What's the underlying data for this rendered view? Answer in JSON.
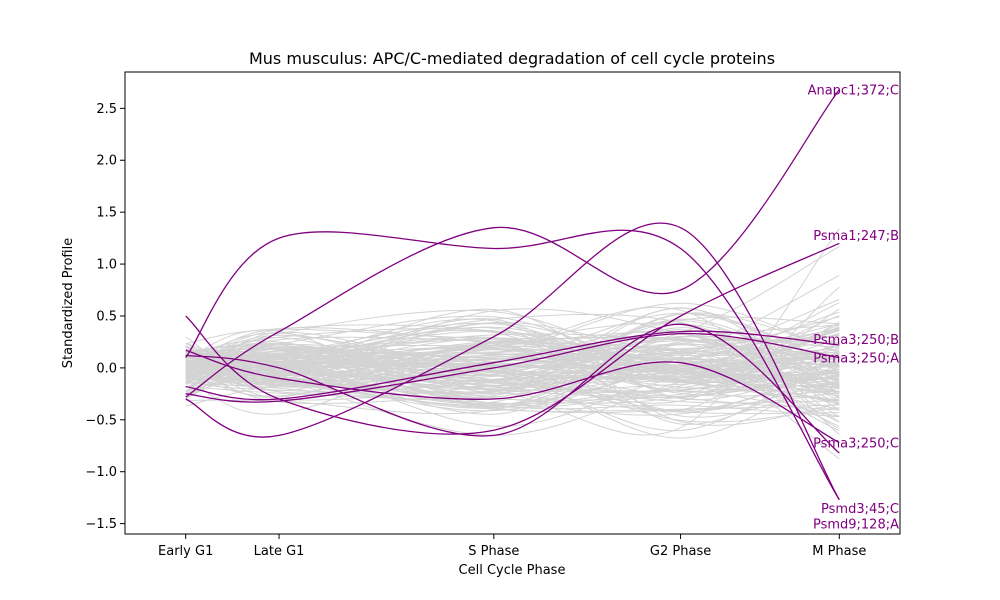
{
  "chart_data": {
    "type": "line",
    "title": "Mus musculus: APC/C-mediated degradation of cell cycle proteins",
    "xlabel": "Cell Cycle Phase",
    "ylabel": "Standardized Profile",
    "categories": [
      "Early G1",
      "Late G1",
      "S Phase",
      "G2 Phase",
      "M Phase"
    ],
    "category_positions": [
      0,
      1,
      3.3,
      5.3,
      7
    ],
    "xlim": [
      -0.65,
      7.65
    ],
    "ylim": [
      -1.6,
      2.85
    ],
    "yticks": [
      -1.5,
      -1.0,
      -0.5,
      0.0,
      0.5,
      1.0,
      1.5,
      2.0,
      2.5
    ],
    "ytick_labels": [
      "−1.5",
      "−1.0",
      "−0.5",
      "0.0",
      "0.5",
      "1.0",
      "1.5",
      "2.0",
      "2.5"
    ],
    "grid": false,
    "background_color": "#d3d3d3",
    "highlight_color": "#800080",
    "background_series_count": 140,
    "highlighted_series": [
      {
        "name": "Anapc1;372;C",
        "values": [
          -0.28,
          0.35,
          1.35,
          0.75,
          2.68
        ]
      },
      {
        "name": "Psma1;247;B",
        "values": [
          0.5,
          -0.3,
          -0.6,
          0.5,
          1.2
        ]
      },
      {
        "name": "Psma3;250;B",
        "values": [
          -0.18,
          -0.3,
          0.05,
          0.35,
          0.22
        ]
      },
      {
        "name": "Psma3;250;A",
        "values": [
          -0.25,
          -0.32,
          0.0,
          0.33,
          0.1
        ]
      },
      {
        "name": "Psma3;250;C",
        "values": [
          0.17,
          -0.1,
          -0.3,
          0.05,
          -0.72
        ]
      },
      {
        "name": "Psmd3;45;C",
        "values": [
          -0.3,
          -0.65,
          0.3,
          1.35,
          -1.27
        ]
      },
      {
        "name": "Psmd9;128;A",
        "values": [
          0.1,
          1.25,
          1.15,
          1.15,
          -1.27
        ]
      },
      {
        "name": "",
        "values": [
          0.12,
          0.0,
          -0.65,
          0.42,
          -0.82
        ]
      }
    ],
    "label_y": [
      2.68,
      1.28,
      0.28,
      0.1,
      -0.72,
      -1.35,
      -1.5
    ]
  }
}
